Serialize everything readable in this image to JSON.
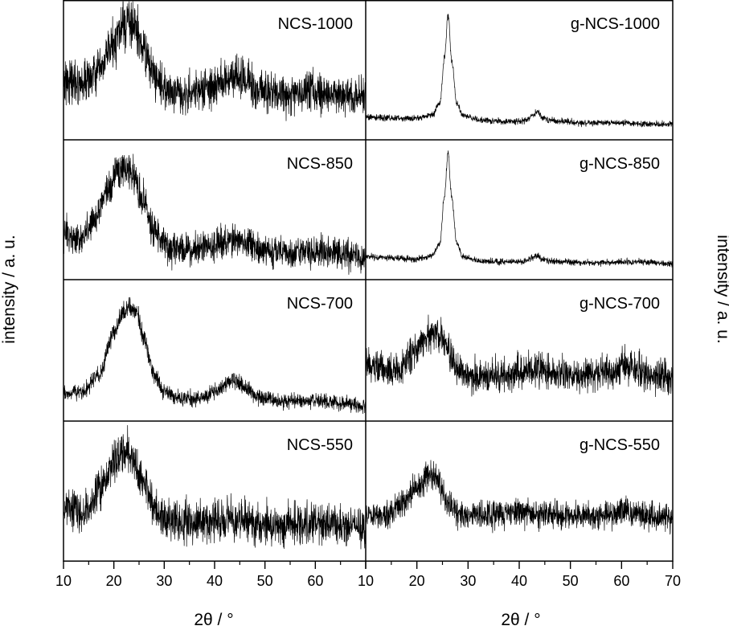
{
  "figure": {
    "y_label": "intensity / a. u.",
    "x_label": "2θ / °"
  },
  "chart_data": {
    "type": "line",
    "layout": "4x2 panel grid, shared x axes per column",
    "xlim": [
      10,
      70
    ],
    "x_ticks": [
      10,
      20,
      30,
      40,
      50,
      60,
      70
    ],
    "xlabel": "2θ / °",
    "ylabel": "intensity / a. u.",
    "grid": false,
    "columns": [
      {
        "id": "left",
        "x_tick_labels": [
          "10",
          "20",
          "30",
          "40",
          "50",
          "60"
        ],
        "panels": [
          {
            "label": "NCS-1000",
            "points": [
              [
                10,
                0.42
              ],
              [
                14,
                0.4
              ],
              [
                17,
                0.48
              ],
              [
                20,
                0.72
              ],
              [
                22,
                0.86
              ],
              [
                23,
                0.9
              ],
              [
                24,
                0.86
              ],
              [
                26,
                0.66
              ],
              [
                28,
                0.45
              ],
              [
                31,
                0.32
              ],
              [
                35,
                0.31
              ],
              [
                39,
                0.34
              ],
              [
                42,
                0.41
              ],
              [
                44,
                0.45
              ],
              [
                46,
                0.4
              ],
              [
                49,
                0.32
              ],
              [
                55,
                0.3
              ],
              [
                60,
                0.32
              ],
              [
                65,
                0.3
              ],
              [
                70,
                0.28
              ]
            ],
            "noise": 0.075
          },
          {
            "label": "NCS-850",
            "points": [
              [
                10,
                0.3
              ],
              [
                13,
                0.25
              ],
              [
                16,
                0.4
              ],
              [
                19,
                0.7
              ],
              [
                21,
                0.82
              ],
              [
                22,
                0.85
              ],
              [
                24,
                0.78
              ],
              [
                26,
                0.55
              ],
              [
                28,
                0.3
              ],
              [
                31,
                0.18
              ],
              [
                35,
                0.17
              ],
              [
                39,
                0.19
              ],
              [
                42,
                0.24
              ],
              [
                44,
                0.27
              ],
              [
                46,
                0.22
              ],
              [
                50,
                0.16
              ],
              [
                55,
                0.14
              ],
              [
                60,
                0.15
              ],
              [
                65,
                0.13
              ],
              [
                70,
                0.11
              ]
            ],
            "noise": 0.06
          },
          {
            "label": "NCS-700",
            "points": [
              [
                10,
                0.14
              ],
              [
                14,
                0.17
              ],
              [
                17,
                0.3
              ],
              [
                20,
                0.64
              ],
              [
                22,
                0.82
              ],
              [
                23,
                0.85
              ],
              [
                24.5,
                0.8
              ],
              [
                26,
                0.6
              ],
              [
                28,
                0.3
              ],
              [
                30,
                0.15
              ],
              [
                33,
                0.1
              ],
              [
                37,
                0.11
              ],
              [
                40,
                0.16
              ],
              [
                43,
                0.24
              ],
              [
                44,
                0.25
              ],
              [
                46,
                0.2
              ],
              [
                49,
                0.11
              ],
              [
                55,
                0.08
              ],
              [
                60,
                0.09
              ],
              [
                65,
                0.07
              ],
              [
                70,
                0.04
              ]
            ],
            "noise": 0.03
          },
          {
            "label": "NCS-550",
            "points": [
              [
                10,
                0.38
              ],
              [
                14,
                0.33
              ],
              [
                18,
                0.55
              ],
              [
                21,
                0.78
              ],
              [
                22.5,
                0.82
              ],
              [
                24,
                0.75
              ],
              [
                26,
                0.55
              ],
              [
                28,
                0.38
              ],
              [
                30,
                0.27
              ],
              [
                34,
                0.24
              ],
              [
                40,
                0.25
              ],
              [
                44,
                0.27
              ],
              [
                50,
                0.22
              ],
              [
                55,
                0.23
              ],
              [
                60,
                0.24
              ],
              [
                65,
                0.22
              ],
              [
                70,
                0.2
              ]
            ],
            "noise": 0.075
          }
        ]
      },
      {
        "id": "right",
        "x_tick_labels": [
          "10",
          "20",
          "30",
          "40",
          "50",
          "60",
          "70"
        ],
        "panels": [
          {
            "label": "g-NCS-1000",
            "points": [
              [
                10,
                0.11
              ],
              [
                15,
                0.1
              ],
              [
                20,
                0.1
              ],
              [
                23,
                0.13
              ],
              [
                24.5,
                0.22
              ],
              [
                25.4,
                0.6
              ],
              [
                26.1,
                0.96
              ],
              [
                26.8,
                0.58
              ],
              [
                27.8,
                0.22
              ],
              [
                29,
                0.12
              ],
              [
                33,
                0.08
              ],
              [
                38,
                0.07
              ],
              [
                41,
                0.08
              ],
              [
                42.5,
                0.12
              ],
              [
                43.5,
                0.15
              ],
              [
                44.5,
                0.11
              ],
              [
                46,
                0.08
              ],
              [
                53,
                0.06
              ],
              [
                60,
                0.06
              ],
              [
                65,
                0.05
              ],
              [
                70,
                0.05
              ]
            ],
            "noise": 0.012
          },
          {
            "label": "g-NCS-850",
            "points": [
              [
                10,
                0.11
              ],
              [
                15,
                0.1
              ],
              [
                20,
                0.09
              ],
              [
                23,
                0.12
              ],
              [
                24.5,
                0.22
              ],
              [
                25.4,
                0.62
              ],
              [
                26.1,
                0.97
              ],
              [
                26.8,
                0.6
              ],
              [
                27.8,
                0.22
              ],
              [
                29,
                0.11
              ],
              [
                33,
                0.07
              ],
              [
                38,
                0.07
              ],
              [
                41,
                0.07
              ],
              [
                42.5,
                0.1
              ],
              [
                43.5,
                0.12
              ],
              [
                44.5,
                0.09
              ],
              [
                46,
                0.07
              ],
              [
                55,
                0.06
              ],
              [
                62,
                0.07
              ],
              [
                70,
                0.05
              ]
            ],
            "noise": 0.012
          },
          {
            "label": "g-NCS-700",
            "points": [
              [
                10,
                0.4
              ],
              [
                13,
                0.35
              ],
              [
                16,
                0.33
              ],
              [
                19,
                0.45
              ],
              [
                22,
                0.62
              ],
              [
                24,
                0.66
              ],
              [
                26,
                0.52
              ],
              [
                28,
                0.34
              ],
              [
                31,
                0.28
              ],
              [
                36,
                0.29
              ],
              [
                40,
                0.32
              ],
              [
                44,
                0.35
              ],
              [
                48,
                0.31
              ],
              [
                52,
                0.29
              ],
              [
                56,
                0.32
              ],
              [
                60,
                0.37
              ],
              [
                62,
                0.36
              ],
              [
                66,
                0.3
              ],
              [
                70,
                0.28
              ]
            ],
            "noise": 0.06
          },
          {
            "label": "g-NCS-550",
            "points": [
              [
                10,
                0.3
              ],
              [
                14,
                0.29
              ],
              [
                17,
                0.38
              ],
              [
                20,
                0.52
              ],
              [
                22.5,
                0.64
              ],
              [
                24,
                0.6
              ],
              [
                26,
                0.4
              ],
              [
                28,
                0.3
              ],
              [
                32,
                0.29
              ],
              [
                38,
                0.31
              ],
              [
                44,
                0.31
              ],
              [
                50,
                0.29
              ],
              [
                56,
                0.3
              ],
              [
                60,
                0.33
              ],
              [
                63,
                0.31
              ],
              [
                67,
                0.28
              ],
              [
                70,
                0.27
              ]
            ],
            "noise": 0.05
          }
        ]
      }
    ]
  }
}
